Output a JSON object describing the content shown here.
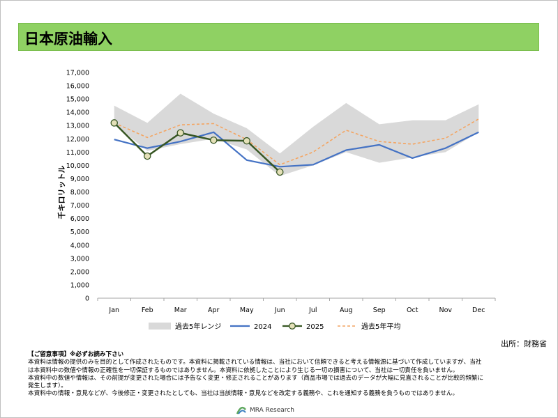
{
  "title": "日本原油輸入",
  "source": "出所：財務省",
  "notes": {
    "heading": "【ご留意事項】※必ずお読み下さい",
    "lines": [
      "本資料は情報の提供のみを目的として作成されたものです。本資料に掲載されている情報は、当社において信頼できると考える情報源に基づいて作成していますが、当社",
      "は本資料中の数値や情報の正確性を一切保証するものではありません。本資料に依拠したことにより生じる一切の損害について、当社は一切責任を負いません。",
      "本資料中の数値や情報は、その前提が変更された場合には予告なく変更・修正されることがあります（商品市場では過去のデータが大幅に見直されることが比較的頻繁に",
      "発生します）。",
      "本資料中の情報・意見などが、今後修正・変更されたとしても、当社は当該情報・意見などを改定する義務や、これを通知する義務を負うものではありません。"
    ]
  },
  "logo_text": "MRA Research",
  "chart_data": {
    "type": "line",
    "ylabel": "千キロリットル",
    "ylim": [
      0,
      17000
    ],
    "ytick_step": 1000,
    "ytick_labels": [
      "0",
      "1,000",
      "2,000",
      "3,000",
      "4,000",
      "5,000",
      "6,000",
      "7,000",
      "8,000",
      "9,000",
      "10,000",
      "11,000",
      "12,000",
      "13,000",
      "14,000",
      "15,000",
      "16,000",
      "17,000"
    ],
    "categories": [
      "Jan",
      "Feb",
      "Mar",
      "Apr",
      "May",
      "Jun",
      "Jul",
      "Aug",
      "Sep",
      "Oct",
      "Nov",
      "Dec"
    ],
    "range": {
      "name": "過去5年レンジ",
      "color": "#d9d9d9",
      "min": [
        13100,
        11100,
        11600,
        12000,
        11200,
        9200,
        10000,
        11000,
        10200,
        10600,
        11000,
        12500
      ],
      "max": [
        14500,
        13200,
        15400,
        13900,
        12800,
        10900,
        12900,
        14700,
        13100,
        13400,
        13400,
        14600
      ]
    },
    "series": [
      {
        "name": "2024",
        "color": "#4472c4",
        "dash": "",
        "marker": false,
        "values": [
          11950,
          11300,
          11800,
          12500,
          10400,
          9900,
          10050,
          11150,
          11550,
          10550,
          11300,
          12500
        ]
      },
      {
        "name": "2025",
        "color": "#375623",
        "dash": "",
        "marker": true,
        "values": [
          13200,
          10700,
          12450,
          11900,
          11850,
          9500,
          null,
          null,
          null,
          null,
          null,
          null
        ]
      },
      {
        "name": "過去5年平均",
        "color": "#f4a460",
        "dash": "4,3",
        "marker": false,
        "values": [
          13200,
          12100,
          13050,
          13150,
          11950,
          10050,
          11000,
          12650,
          11800,
          11600,
          12050,
          13500
        ]
      }
    ]
  }
}
